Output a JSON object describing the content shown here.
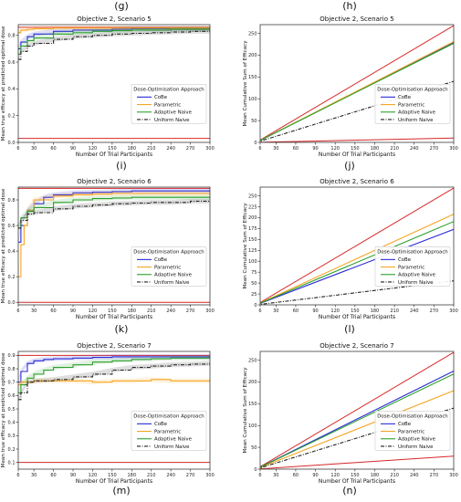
{
  "panel_labels": [
    "(g)",
    "(h)",
    "(i)",
    "(j)",
    "(k)",
    "(l)",
    "(m)",
    "(n)"
  ],
  "colors": {
    "CoBe": "#2a2ad6",
    "Parametric": "#f5a623",
    "Adaptive Naive": "#2ca02c",
    "Uniform Naive": "#222222",
    "reference": "#d62728"
  },
  "chart_data": [
    {
      "type": "line",
      "title": "Objective 2, Scenario 5",
      "xlabel": "Number Of Trial Participants",
      "ylabel": "Mean true efficacy at predicted optimal dose",
      "xlim": [
        6,
        300
      ],
      "ylim": [
        0,
        0.88
      ],
      "xticks": [
        6,
        30,
        60,
        90,
        120,
        150,
        180,
        210,
        240,
        270,
        300
      ],
      "yticks": [
        0.0,
        0.2,
        0.4,
        0.6,
        0.8
      ],
      "yticklabels": [
        "0.0",
        "0.2",
        "0.4",
        "0.6",
        "0.8"
      ],
      "legend": {
        "title": "Dose-Optimisation Approach",
        "position": "center-right"
      },
      "hlines": [
        0.86,
        0.03
      ],
      "series": [
        {
          "name": "CoBe",
          "x": [
            6,
            10,
            20,
            30,
            60,
            90,
            120,
            150,
            180,
            210,
            240,
            270,
            300
          ],
          "y": [
            0.7,
            0.75,
            0.79,
            0.81,
            0.83,
            0.84,
            0.84,
            0.845,
            0.85,
            0.85,
            0.85,
            0.85,
            0.85
          ]
        },
        {
          "name": "Parametric",
          "x": [
            6,
            10,
            20,
            30,
            60,
            90,
            120,
            150,
            180,
            210,
            240,
            270,
            300
          ],
          "y": [
            0.82,
            0.84,
            0.845,
            0.85,
            0.855,
            0.855,
            0.855,
            0.855,
            0.855,
            0.855,
            0.855,
            0.855,
            0.855
          ]
        },
        {
          "name": "Adaptive Naive",
          "x": [
            6,
            10,
            20,
            30,
            60,
            90,
            120,
            150,
            180,
            210,
            240,
            270,
            300
          ],
          "y": [
            0.66,
            0.72,
            0.76,
            0.78,
            0.81,
            0.82,
            0.83,
            0.835,
            0.84,
            0.84,
            0.845,
            0.845,
            0.845
          ]
        },
        {
          "name": "Uniform Naive",
          "x": [
            6,
            10,
            20,
            30,
            60,
            90,
            120,
            150,
            180,
            210,
            240,
            270,
            300
          ],
          "y": [
            0.62,
            0.68,
            0.72,
            0.74,
            0.77,
            0.79,
            0.8,
            0.81,
            0.815,
            0.82,
            0.825,
            0.83,
            0.83
          ]
        }
      ]
    },
    {
      "type": "line",
      "title": "Objective 2, Scenario 5",
      "xlabel": "Number Of Trial Participants",
      "ylabel": "Mean Cumulative Sum of Efficacy",
      "xlim": [
        6,
        300
      ],
      "ylim": [
        0,
        270
      ],
      "xticks": [
        6,
        30,
        60,
        90,
        120,
        150,
        180,
        210,
        240,
        270,
        300
      ],
      "yticks": [
        0,
        50,
        100,
        150,
        200,
        250
      ],
      "yticklabels": [
        "0",
        "50",
        "100",
        "150",
        "200",
        "250"
      ],
      "legend": {
        "title": "Dose-Optimisation Approach",
        "position": "center-right"
      },
      "series": [
        {
          "x": [
            0,
            300
          ],
          "y": [
            0,
            268
          ]
        },
        {
          "x": [
            0,
            300
          ],
          "y": [
            0,
            10
          ]
        },
        {
          "name": "CoBe",
          "x": [
            0,
            300
          ],
          "y": [
            0,
            229
          ]
        },
        {
          "name": "Parametric",
          "x": [
            0,
            300
          ],
          "y": [
            0,
            231
          ]
        },
        {
          "name": "Adaptive Naive",
          "x": [
            0,
            300
          ],
          "y": [
            0,
            227
          ]
        },
        {
          "name": "Uniform Naive",
          "x": [
            0,
            300
          ],
          "y": [
            0,
            140
          ]
        }
      ]
    },
    {
      "type": "line",
      "title": "Objective 2, Scenario 6",
      "xlabel": "Number Of Trial Participants",
      "ylabel": "Mean true efficacy at predicted optimal dose",
      "xlim": [
        6,
        300
      ],
      "ylim": [
        -0.02,
        0.9
      ],
      "xticks": [
        6,
        30,
        60,
        90,
        120,
        150,
        180,
        210,
        240,
        270,
        300
      ],
      "yticks": [
        0.0,
        0.2,
        0.4,
        0.6,
        0.8
      ],
      "yticklabels": [
        "0.0",
        "0.2",
        "0.4",
        "0.6",
        "0.8"
      ],
      "legend": {
        "title": "Dose-Optimisation Approach",
        "position": "center-right"
      },
      "hlines": [
        0.89,
        0.0
      ],
      "series": [
        {
          "name": "CoBe",
          "x": [
            6,
            10,
            20,
            30,
            45,
            60,
            90,
            120,
            150,
            180,
            210,
            240,
            270,
            300
          ],
          "y": [
            0.47,
            0.6,
            0.72,
            0.77,
            0.82,
            0.84,
            0.855,
            0.86,
            0.865,
            0.87,
            0.87,
            0.87,
            0.87,
            0.87
          ]
        },
        {
          "name": "Parametric",
          "x": [
            6,
            10,
            15,
            20,
            30,
            60,
            90,
            120,
            150,
            180,
            210,
            240,
            270,
            300
          ],
          "y": [
            0.2,
            0.45,
            0.6,
            0.72,
            0.8,
            0.83,
            0.84,
            0.845,
            0.85,
            0.85,
            0.85,
            0.85,
            0.85,
            0.85
          ]
        },
        {
          "name": "Adaptive Naive",
          "x": [
            6,
            10,
            20,
            30,
            60,
            90,
            120,
            150,
            180,
            210,
            240,
            270,
            300
          ],
          "y": [
            0.58,
            0.66,
            0.71,
            0.74,
            0.78,
            0.8,
            0.81,
            0.815,
            0.82,
            0.82,
            0.82,
            0.82,
            0.82
          ]
        },
        {
          "name": "Uniform Naive",
          "x": [
            6,
            10,
            20,
            30,
            60,
            90,
            120,
            150,
            180,
            210,
            240,
            270,
            300
          ],
          "y": [
            0.58,
            0.64,
            0.69,
            0.7,
            0.73,
            0.75,
            0.76,
            0.77,
            0.775,
            0.78,
            0.78,
            0.79,
            0.79
          ]
        }
      ]
    },
    {
      "type": "line",
      "title": "Objective 2, Scenario 6",
      "xlabel": "Number Of Trial Participants",
      "ylabel": "Mean Cumulative Sum of Efficacy",
      "xlim": [
        6,
        300
      ],
      "ylim": [
        0,
        270
      ],
      "xticks": [
        6,
        30,
        60,
        90,
        120,
        150,
        180,
        210,
        240,
        270,
        300
      ],
      "yticks": [
        0,
        25,
        50,
        75,
        100,
        125,
        150,
        175,
        200,
        225,
        250
      ],
      "yticklabels": [
        "0",
        "25",
        "50",
        "75",
        "100",
        "125",
        "150",
        "175",
        "200",
        "225",
        "250"
      ],
      "legend": {
        "title": "Dose-Optimisation Approach",
        "position": "center-right"
      },
      "series": [
        {
          "x": [
            0,
            300
          ],
          "y": [
            0,
            268
          ]
        },
        {
          "name": "CoBe",
          "x": [
            0,
            300
          ],
          "y": [
            0,
            173
          ]
        },
        {
          "name": "Parametric",
          "x": [
            0,
            300
          ],
          "y": [
            0,
            208
          ]
        },
        {
          "name": "Adaptive Naive",
          "x": [
            0,
            300
          ],
          "y": [
            0,
            191
          ]
        },
        {
          "name": "Uniform Naive",
          "x": [
            0,
            300
          ],
          "y": [
            0,
            55
          ]
        }
      ]
    },
    {
      "type": "line",
      "title": "Objective 2, Scenario 7",
      "xlabel": "Number Of Trial Participants",
      "ylabel": "Mean true efficacy at predicted optimal dose",
      "xlim": [
        6,
        300
      ],
      "ylim": [
        0.05,
        0.93
      ],
      "xticks": [
        6,
        30,
        60,
        90,
        120,
        150,
        180,
        210,
        240,
        270,
        300
      ],
      "yticks": [
        0.1,
        0.2,
        0.3,
        0.4,
        0.5,
        0.6,
        0.7,
        0.8,
        0.9
      ],
      "yticklabels": [
        "0.1",
        "0.2",
        "0.3",
        "0.4",
        "0.5",
        "0.6",
        "0.7",
        "0.8",
        "0.9"
      ],
      "legend": {
        "title": "Dose-Optimisation Approach",
        "position": "center-right"
      },
      "hlines": [
        0.9,
        0.1
      ],
      "series": [
        {
          "name": "CoBe",
          "x": [
            6,
            10,
            20,
            30,
            45,
            60,
            90,
            120,
            150,
            180,
            210,
            240,
            270,
            300
          ],
          "y": [
            0.7,
            0.78,
            0.84,
            0.86,
            0.87,
            0.875,
            0.88,
            0.885,
            0.89,
            0.89,
            0.89,
            0.89,
            0.89,
            0.89
          ]
        },
        {
          "name": "Parametric",
          "x": [
            6,
            10,
            20,
            30,
            60,
            90,
            120,
            150,
            180,
            210,
            240,
            270,
            300
          ],
          "y": [
            0.68,
            0.7,
            0.7,
            0.71,
            0.71,
            0.71,
            0.7,
            0.71,
            0.71,
            0.72,
            0.71,
            0.71,
            0.71
          ]
        },
        {
          "name": "Adaptive Naive",
          "x": [
            6,
            10,
            20,
            30,
            45,
            60,
            90,
            120,
            150,
            180,
            210,
            240,
            270,
            300
          ],
          "y": [
            0.62,
            0.68,
            0.73,
            0.76,
            0.79,
            0.81,
            0.83,
            0.85,
            0.86,
            0.87,
            0.875,
            0.88,
            0.88,
            0.88
          ]
        },
        {
          "name": "Uniform Naive",
          "x": [
            6,
            10,
            20,
            30,
            60,
            90,
            120,
            150,
            180,
            210,
            240,
            270,
            300
          ],
          "y": [
            0.57,
            0.62,
            0.7,
            0.71,
            0.72,
            0.74,
            0.76,
            0.79,
            0.81,
            0.82,
            0.83,
            0.835,
            0.84
          ]
        }
      ]
    },
    {
      "type": "line",
      "title": "Objective 2, Scenario 7",
      "xlabel": "Number Of Trial Participants",
      "ylabel": "Mean Cumulative Sum of Efficacy",
      "xlim": [
        6,
        300
      ],
      "ylim": [
        0,
        270
      ],
      "xticks": [
        6,
        30,
        60,
        90,
        120,
        150,
        180,
        210,
        240,
        270,
        300
      ],
      "yticks": [
        0,
        50,
        100,
        150,
        200,
        250
      ],
      "yticklabels": [
        "0",
        "50",
        "100",
        "150",
        "200",
        "250"
      ],
      "legend": {
        "title": "Dose-Optimisation Approach",
        "position": "center-right"
      },
      "series": [
        {
          "x": [
            0,
            300
          ],
          "y": [
            0,
            268
          ]
        },
        {
          "x": [
            0,
            300
          ],
          "y": [
            0,
            30
          ]
        },
        {
          "name": "CoBe",
          "x": [
            0,
            300
          ],
          "y": [
            0,
            225
          ]
        },
        {
          "name": "Parametric",
          "x": [
            0,
            300
          ],
          "y": [
            0,
            180
          ]
        },
        {
          "name": "Adaptive Naive",
          "x": [
            0,
            300
          ],
          "y": [
            0,
            218
          ]
        },
        {
          "name": "Uniform Naive",
          "x": [
            0,
            300
          ],
          "y": [
            0,
            140
          ]
        }
      ]
    }
  ]
}
